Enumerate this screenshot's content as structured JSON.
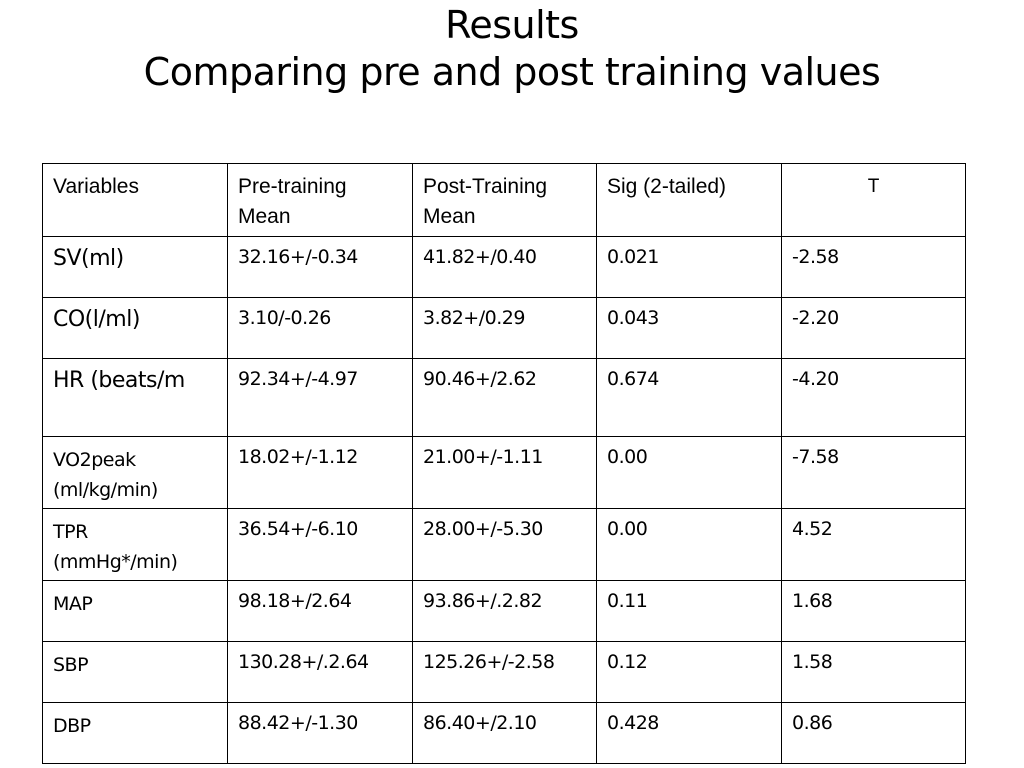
{
  "title": {
    "line1": "Results",
    "line2": "Comparing pre and post training values"
  },
  "table": {
    "headers": [
      "Variables",
      "Pre-training Mean",
      "Post-Training Mean",
      "Sig (2-tailed)",
      "T"
    ],
    "rows": [
      {
        "variable": "SV(ml)",
        "pre": "32.16+/-0.34",
        "post": "41.82+/0.40",
        "sig": "0.021",
        "t": "-2.58"
      },
      {
        "variable": "CO(l/ml)",
        "pre": "3.10/-0.26",
        "post": "3.82+/0.29",
        "sig": "0.043",
        "t": "-2.20"
      },
      {
        "variable": "HR (beats/m",
        "pre": "92.34+/-4.97",
        "post": "90.46+/2.62",
        "sig": "0.674",
        "t": "-4.20"
      },
      {
        "variable": "VO2peak (ml/kg/min)",
        "pre": "18.02+/-1.12",
        "post": "21.00+/-1.11",
        "sig": "0.00",
        "t": "-7.58"
      },
      {
        "variable": "TPR (mmHg*/min)",
        "pre": "36.54+/-6.10",
        "post": "28.00+/-5.30",
        "sig": "0.00",
        "t": "4.52"
      },
      {
        "variable": "MAP",
        "pre": "98.18+/2.64",
        "post": "93.86+/.2.82",
        "sig": "0.11",
        "t": "1.68"
      },
      {
        "variable": "SBP",
        "pre": "130.28+/.2.64",
        "post": "125.26+/-2.58",
        "sig": "0.12",
        "t": "1.58"
      },
      {
        "variable": "DBP",
        "pre": "88.42+/-1.30",
        "post": "86.40+/2.10",
        "sig": "0.428",
        "t": "0.86"
      }
    ]
  }
}
